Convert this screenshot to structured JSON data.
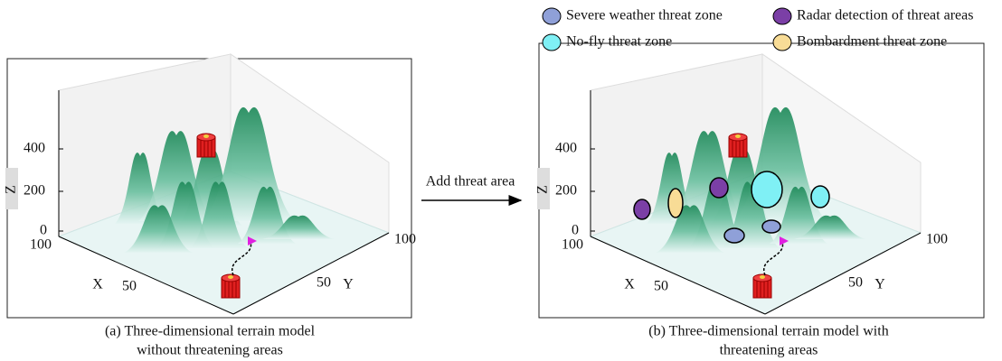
{
  "legend": [
    {
      "label": "Severe weather threat zone",
      "color": "#8fa0d8"
    },
    {
      "label": "Radar detection of threat areas",
      "color": "#7b3fa6"
    },
    {
      "label": "No-fly threat zone",
      "color": "#7ff0f5"
    },
    {
      "label": "Bombardment threat zone",
      "color": "#f8dc96"
    }
  ],
  "arrow_label": "Add threat area",
  "panels": [
    {
      "caption": [
        "(a) Three-dimensional terrain model",
        "without threatening areas"
      ],
      "z_label": "Z",
      "x_label": "X",
      "y_label": "Y",
      "z_ticks": [
        "0",
        "200",
        "400"
      ],
      "x_ticks": [
        "100",
        "50"
      ],
      "y_ticks": [
        "50",
        "100"
      ]
    },
    {
      "caption": [
        "(b) Three-dimensional terrain model with",
        "threatening areas"
      ],
      "z_label": "Z",
      "x_label": "X",
      "y_label": "Y",
      "z_ticks": [
        "0",
        "200",
        "400"
      ],
      "x_ticks": [
        "100",
        "50"
      ],
      "y_ticks": [
        "50",
        "100"
      ]
    }
  ]
}
